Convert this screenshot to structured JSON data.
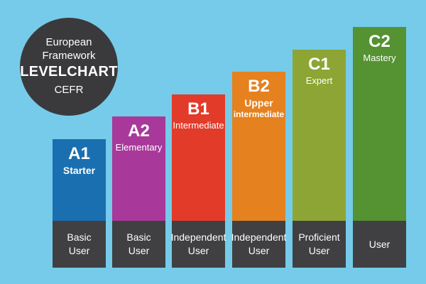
{
  "badge": {
    "line1": "European",
    "line2": "Framework",
    "line3": "LEVELCHART",
    "line4": "CEFR"
  },
  "colors": {
    "background": "#75cbe9",
    "footer": "#404042",
    "badge": "#3a3a3c"
  },
  "chart_data": {
    "type": "bar",
    "title": "LEVELCHART",
    "categories": [
      "A1",
      "A2",
      "B1",
      "B2",
      "C1",
      "C2"
    ],
    "values": [
      1,
      2,
      3,
      4,
      5,
      6
    ],
    "levels": [
      {
        "code": "A1",
        "name": "Starter",
        "user": [
          "Basic",
          "User"
        ],
        "color": "#1a6fb0",
        "bold_name": true
      },
      {
        "code": "A2",
        "name": "Elementary",
        "user": [
          "Basic",
          "User"
        ],
        "color": "#a8399a",
        "bold_name": false
      },
      {
        "code": "B1",
        "name": "Intermediate",
        "user": [
          "Independent",
          "User"
        ],
        "color": "#e23b2a",
        "bold_name": false
      },
      {
        "code": "B2",
        "name": "Upper intermediate",
        "name_lines": [
          "Upper",
          "intermediate"
        ],
        "user": [
          "Independent",
          "User"
        ],
        "color": "#e5811f",
        "bold_name": true
      },
      {
        "code": "C1",
        "name": "Expert",
        "user": [
          "Proficient",
          "User"
        ],
        "color": "#8da534",
        "bold_name": false
      },
      {
        "code": "C2",
        "name": "Mastery",
        "user": [
          "User"
        ],
        "color": "#559231",
        "bold_name": false
      }
    ]
  }
}
